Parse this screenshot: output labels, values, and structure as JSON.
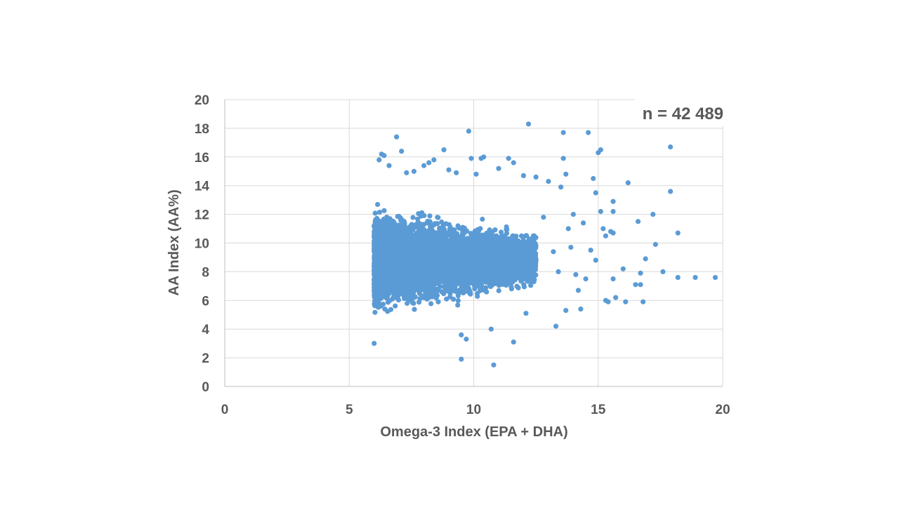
{
  "chart_data": {
    "type": "scatter",
    "title": "",
    "xlabel": "Omega-3 Index (EPA + DHA)",
    "ylabel": "AA Index (AA%)",
    "xlim": [
      0,
      20
    ],
    "ylim": [
      0,
      20
    ],
    "x_ticks": [
      "0",
      "5",
      "10",
      "15",
      "20"
    ],
    "y_ticks": [
      "0",
      "2",
      "4",
      "6",
      "8",
      "10",
      "12",
      "14",
      "16",
      "18",
      "20"
    ],
    "grid": true,
    "legend": "none",
    "annotation": "n = 42 489",
    "marker_color": "#5b9bd5",
    "dense_cluster": {
      "x_range": [
        6.0,
        12.5
      ],
      "y_center": 8.8,
      "y_spread": 2.2,
      "note_count_drawn": 6000
    },
    "points": [
      [
        6.0,
        3.0
      ],
      [
        6.2,
        15.8
      ],
      [
        6.3,
        16.2
      ],
      [
        6.4,
        16.1
      ],
      [
        6.6,
        15.4
      ],
      [
        6.9,
        17.4
      ],
      [
        7.1,
        16.4
      ],
      [
        7.3,
        14.9
      ],
      [
        7.6,
        15.0
      ],
      [
        8.0,
        15.4
      ],
      [
        8.2,
        15.6
      ],
      [
        8.4,
        15.8
      ],
      [
        8.8,
        16.5
      ],
      [
        9.0,
        15.1
      ],
      [
        9.3,
        14.9
      ],
      [
        9.5,
        3.6
      ],
      [
        9.5,
        1.9
      ],
      [
        9.7,
        3.3
      ],
      [
        9.8,
        17.8
      ],
      [
        9.9,
        15.9
      ],
      [
        10.1,
        14.8
      ],
      [
        10.3,
        15.9
      ],
      [
        10.4,
        16.0
      ],
      [
        10.7,
        4.0
      ],
      [
        10.8,
        1.5
      ],
      [
        11.0,
        15.2
      ],
      [
        11.4,
        15.9
      ],
      [
        11.6,
        15.6
      ],
      [
        11.6,
        3.1
      ],
      [
        12.0,
        14.7
      ],
      [
        12.1,
        5.1
      ],
      [
        12.2,
        18.3
      ],
      [
        12.5,
        14.6
      ],
      [
        12.8,
        11.8
      ],
      [
        13.0,
        14.3
      ],
      [
        13.2,
        9.4
      ],
      [
        13.3,
        4.2
      ],
      [
        13.4,
        8.0
      ],
      [
        13.5,
        13.9
      ],
      [
        13.6,
        17.7
      ],
      [
        13.6,
        15.9
      ],
      [
        13.7,
        14.8
      ],
      [
        13.7,
        5.3
      ],
      [
        13.8,
        11.0
      ],
      [
        13.9,
        9.7
      ],
      [
        14.0,
        12.0
      ],
      [
        14.1,
        7.8
      ],
      [
        14.2,
        6.7
      ],
      [
        14.3,
        5.4
      ],
      [
        14.4,
        11.4
      ],
      [
        14.5,
        7.5
      ],
      [
        14.6,
        17.7
      ],
      [
        14.7,
        9.5
      ],
      [
        14.8,
        14.5
      ],
      [
        14.9,
        13.5
      ],
      [
        14.9,
        8.8
      ],
      [
        15.0,
        16.3
      ],
      [
        15.1,
        16.5
      ],
      [
        15.1,
        12.2
      ],
      [
        15.2,
        11.0
      ],
      [
        15.3,
        10.5
      ],
      [
        15.3,
        6.0
      ],
      [
        15.4,
        5.9
      ],
      [
        15.5,
        10.8
      ],
      [
        15.6,
        12.9
      ],
      [
        15.6,
        12.2
      ],
      [
        15.6,
        10.7
      ],
      [
        15.6,
        7.5
      ],
      [
        15.7,
        6.2
      ],
      [
        16.0,
        8.2
      ],
      [
        16.1,
        5.9
      ],
      [
        16.2,
        14.2
      ],
      [
        16.5,
        7.1
      ],
      [
        16.6,
        11.5
      ],
      [
        16.7,
        7.9
      ],
      [
        16.7,
        7.1
      ],
      [
        16.8,
        5.9
      ],
      [
        16.9,
        8.9
      ],
      [
        17.2,
        12.0
      ],
      [
        17.3,
        9.9
      ],
      [
        17.6,
        8.0
      ],
      [
        17.9,
        16.7
      ],
      [
        17.9,
        13.6
      ],
      [
        18.2,
        10.7
      ],
      [
        18.2,
        7.6
      ],
      [
        18.9,
        7.6
      ],
      [
        19.7,
        7.6
      ]
    ]
  }
}
